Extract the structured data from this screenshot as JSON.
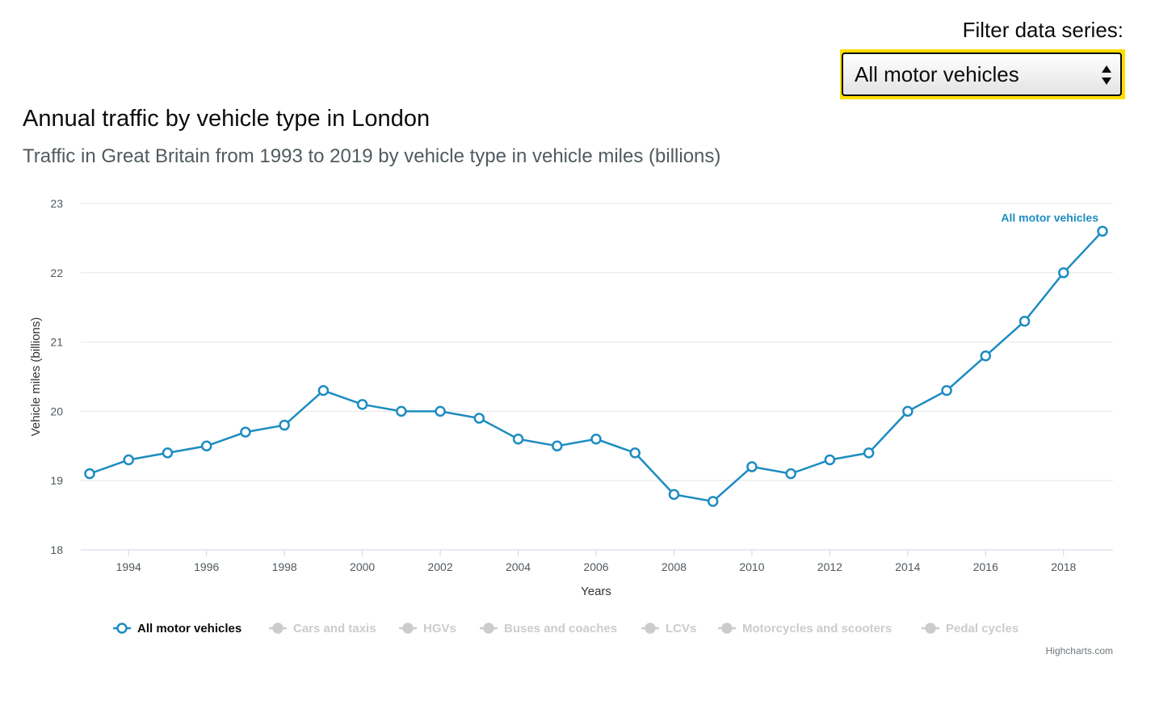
{
  "filter": {
    "label": "Filter data series:",
    "selected": "All motor vehicles"
  },
  "colors": {
    "series": "#1d8cc1",
    "inactive_legend": "#cccccc",
    "focus": "#ffdd00",
    "grid": "#e6e6e6"
  },
  "credit": "Highcharts.com",
  "chart_data": {
    "type": "line",
    "title": "Annual traffic by vehicle type in London",
    "subtitle": "Traffic in Great Britain from 1993 to 2019 by vehicle type in vehicle miles (billions)",
    "xlabel": "Years",
    "ylabel": "Vehicle miles (billions)",
    "xlim": [
      1993,
      2019
    ],
    "ylim": [
      18,
      23
    ],
    "yticks": [
      18,
      19,
      20,
      21,
      22,
      23
    ],
    "xticks": [
      1994,
      1996,
      1998,
      2000,
      2002,
      2004,
      2006,
      2008,
      2010,
      2012,
      2014,
      2016,
      2018
    ],
    "grid": true,
    "legend_position": "bottom",
    "x": [
      1993,
      1994,
      1995,
      1996,
      1997,
      1998,
      1999,
      2000,
      2001,
      2002,
      2003,
      2004,
      2005,
      2006,
      2007,
      2008,
      2009,
      2010,
      2011,
      2012,
      2013,
      2014,
      2015,
      2016,
      2017,
      2018,
      2019
    ],
    "series": [
      {
        "name": "All motor vehicles",
        "values": [
          19.1,
          19.3,
          19.4,
          19.5,
          19.7,
          19.8,
          20.3,
          20.1,
          20.0,
          20.0,
          19.9,
          19.6,
          19.5,
          19.6,
          19.4,
          18.8,
          18.7,
          19.2,
          19.1,
          19.3,
          19.4,
          20.0,
          20.3,
          20.8,
          21.3,
          22.0,
          22.6
        ]
      }
    ],
    "legend": [
      {
        "name": "All motor vehicles",
        "active": true
      },
      {
        "name": "Cars and taxis",
        "active": false
      },
      {
        "name": "HGVs",
        "active": false
      },
      {
        "name": "Buses and coaches",
        "active": false
      },
      {
        "name": "LCVs",
        "active": false
      },
      {
        "name": "Motorcycles and scooters",
        "active": false
      },
      {
        "name": "Pedal cycles",
        "active": false
      }
    ]
  }
}
